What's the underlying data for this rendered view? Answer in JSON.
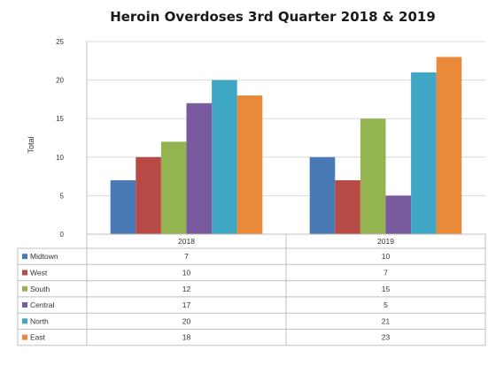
{
  "chart_data": {
    "type": "bar",
    "title": "Heroin Overdoses 3rd Quarter 2018 & 2019",
    "ylabel": "Total",
    "xlabel": "",
    "ylim": [
      0,
      25
    ],
    "yticks": [
      0,
      5,
      10,
      15,
      20,
      25
    ],
    "grid": true,
    "legend": "data-table",
    "categories": [
      "2018",
      "2019"
    ],
    "series": [
      {
        "name": "Midtown",
        "color": "#4a7ab5",
        "values": [
          7,
          10
        ],
        "labels": [
          "7",
          "10"
        ]
      },
      {
        "name": "West",
        "color": "#b84a46",
        "values": [
          10,
          7
        ],
        "labels": [
          "10",
          "7"
        ]
      },
      {
        "name": "South",
        "color": "#93b451",
        "values": [
          12,
          15
        ],
        "labels": [
          "12",
          "15"
        ]
      },
      {
        "name": "Central",
        "color": "#7a5a9e",
        "values": [
          17,
          5
        ],
        "labels": [
          "17",
          "5"
        ]
      },
      {
        "name": "North",
        "color": "#3fa6c4",
        "values": [
          20,
          21
        ],
        "labels": [
          "20",
          "21"
        ]
      },
      {
        "name": "East",
        "color": "#e88a3a",
        "values": [
          18,
          23
        ],
        "labels": [
          "18",
          "23"
        ]
      }
    ]
  }
}
